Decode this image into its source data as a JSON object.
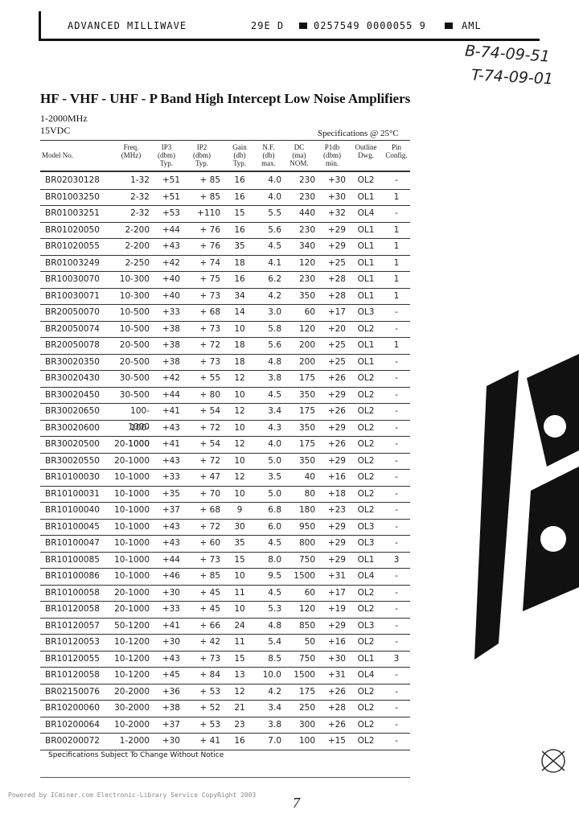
{
  "header": {
    "company": "ADVANCED MILLIWAVE",
    "code": "29E D",
    "serial": "0257549 0000055 9",
    "brand": "AML",
    "handwritten": [
      "B-74-09-51",
      "T-74-09-01"
    ]
  },
  "title": "HF - VHF - UHF - P Band High Intercept Low Noise Amplifiers",
  "subtitle": [
    "1-2000MHz",
    "15VDC"
  ],
  "spec_note": "Specifications @ 25°C",
  "table": {
    "columns": [
      [
        "Model No."
      ],
      [
        "Freq.",
        "(MHz)"
      ],
      [
        "IP3",
        "(dbm)",
        "Typ."
      ],
      [
        "IP2",
        "(dbm)",
        "Typ."
      ],
      [
        "Gain",
        "(db)",
        "Typ."
      ],
      [
        "N.F.",
        "(db)",
        "max."
      ],
      [
        "DC",
        "(ma)",
        "NOM."
      ],
      [
        "P1db",
        "(dbm)",
        "min."
      ],
      [
        "Outline",
        "Dwg."
      ],
      [
        "Pin",
        "Config."
      ]
    ],
    "rows": [
      [
        "BR02030128",
        "1-32",
        "+51",
        "+ 85",
        "16",
        "4.0",
        "230",
        "+30",
        "OL2",
        "-"
      ],
      [
        "BR01003250",
        "2-32",
        "+51",
        "+ 85",
        "16",
        "4.0",
        "230",
        "+30",
        "OL1",
        "1"
      ],
      [
        "BR01003251",
        "2-32",
        "+53",
        "+110",
        "15",
        "5.5",
        "440",
        "+32",
        "OL4",
        "-"
      ],
      [
        "BR01020050",
        "2-200",
        "+44",
        "+ 76",
        "16",
        "5.6",
        "230",
        "+29",
        "OL1",
        "1"
      ],
      [
        "BR01020055",
        "2-200",
        "+43",
        "+ 76",
        "35",
        "4.5",
        "340",
        "+29",
        "OL1",
        "1"
      ],
      [
        "BR01003249",
        "2-250",
        "+42",
        "+ 74",
        "18",
        "4.1",
        "120",
        "+25",
        "OL1",
        "1"
      ],
      [
        "BR10030070",
        "10-300",
        "+40",
        "+ 75",
        "16",
        "6.2",
        "230",
        "+28",
        "OL1",
        "1"
      ],
      [
        "BR10030071",
        "10-300",
        "+40",
        "+ 73",
        "34",
        "4.2",
        "350",
        "+28",
        "OL1",
        "1"
      ],
      [
        "BR20050070",
        "10-500",
        "+33",
        "+ 68",
        "14",
        "3.0",
        "60",
        "+17",
        "OL3",
        "-"
      ],
      [
        "BR20050074",
        "10-500",
        "+38",
        "+ 73",
        "10",
        "5.8",
        "120",
        "+20",
        "OL2",
        "-"
      ],
      [
        "BR20050078",
        "20-500",
        "+38",
        "+ 72",
        "18",
        "5.6",
        "200",
        "+25",
        "OL1",
        "1"
      ],
      [
        "BR30020350",
        "20-500",
        "+38",
        "+ 73",
        "18",
        "4.8",
        "200",
        "+25",
        "OL1",
        "-"
      ],
      [
        "BR30020430",
        "30-500",
        "+42",
        "+ 55",
        "12",
        "3.8",
        "175",
        "+26",
        "OL2",
        "-"
      ],
      [
        "BR30020450",
        "30-500",
        "+44",
        "+ 80",
        "10",
        "4.5",
        "350",
        "+29",
        "OL2",
        "-"
      ],
      [
        "BR30020650",
        "100-1000",
        "+41",
        "+ 54",
        "12",
        "3.4",
        "175",
        "+26",
        "OL2",
        "-"
      ],
      [
        "BR30020600",
        "100-1000",
        "+43",
        "+ 72",
        "10",
        "4.3",
        "350",
        "+29",
        "OL2",
        "-"
      ],
      [
        "BR30020500",
        "20-1000",
        "+41",
        "+ 54",
        "12",
        "4.0",
        "175",
        "+26",
        "OL2",
        "-"
      ],
      [
        "BR30020550",
        "20-1000",
        "+43",
        "+ 72",
        "10",
        "5.0",
        "350",
        "+29",
        "OL2",
        "-"
      ],
      [
        "BR10100030",
        "10-1000",
        "+33",
        "+ 47",
        "12",
        "3.5",
        "40",
        "+16",
        "OL2",
        "-"
      ],
      [
        "BR10100031",
        "10-1000",
        "+35",
        "+ 70",
        "10",
        "5.0",
        "80",
        "+18",
        "OL2",
        "-"
      ],
      [
        "BR10100040",
        "10-1000",
        "+37",
        "+ 68",
        "9",
        "6.8",
        "180",
        "+23",
        "OL2",
        "-"
      ],
      [
        "BR10100045",
        "10-1000",
        "+43",
        "+ 72",
        "30",
        "6.0",
        "950",
        "+29",
        "OL3",
        "-"
      ],
      [
        "BR10100047",
        "10-1000",
        "+43",
        "+ 60",
        "35",
        "4.5",
        "800",
        "+29",
        "OL3",
        "-"
      ],
      [
        "BR10100085",
        "10-1000",
        "+44",
        "+ 73",
        "15",
        "8.0",
        "750",
        "+29",
        "OL1",
        "3"
      ],
      [
        "BR10100086",
        "10-1000",
        "+46",
        "+ 85",
        "10",
        "9.5",
        "1500",
        "+31",
        "OL4",
        "-"
      ],
      [
        "BR10100058",
        "20-1000",
        "+30",
        "+ 45",
        "11",
        "4.5",
        "60",
        "+17",
        "OL2",
        "-"
      ],
      [
        "BR10120058",
        "20-1000",
        "+33",
        "+ 45",
        "10",
        "5.3",
        "120",
        "+19",
        "OL2",
        "-"
      ],
      [
        "BR10120057",
        "50-1200",
        "+41",
        "+ 66",
        "24",
        "4.8",
        "850",
        "+29",
        "OL3",
        "-"
      ],
      [
        "BR10120053",
        "10-1200",
        "+30",
        "+ 42",
        "11",
        "5.4",
        "50",
        "+16",
        "OL2",
        "-"
      ],
      [
        "BR10120055",
        "10-1200",
        "+43",
        "+ 73",
        "15",
        "8.5",
        "750",
        "+30",
        "OL1",
        "3"
      ],
      [
        "BR10120058",
        "10-1200",
        "+45",
        "+ 84",
        "13",
        "10.0",
        "1500",
        "+31",
        "OL4",
        "-"
      ],
      [
        "BR02150076",
        "20-2000",
        "+36",
        "+ 53",
        "12",
        "4.2",
        "175",
        "+26",
        "OL2",
        "-"
      ],
      [
        "BR10200060",
        "30-2000",
        "+38",
        "+ 52",
        "21",
        "3.4",
        "250",
        "+28",
        "OL2",
        "-"
      ],
      [
        "BR10200064",
        "10-2000",
        "+37",
        "+ 53",
        "23",
        "3.8",
        "300",
        "+26",
        "OL2",
        "-"
      ],
      [
        "BR00200072",
        "1-2000",
        "+30",
        "+ 41",
        "16",
        "7.0",
        "100",
        "+15",
        "OL2",
        "-"
      ]
    ]
  },
  "footnote": "Specifications Subject To Change Without Notice",
  "page_number": "7",
  "watermark": "Powered by ICminer.com Electronic-Library Service CopyRight 2003"
}
